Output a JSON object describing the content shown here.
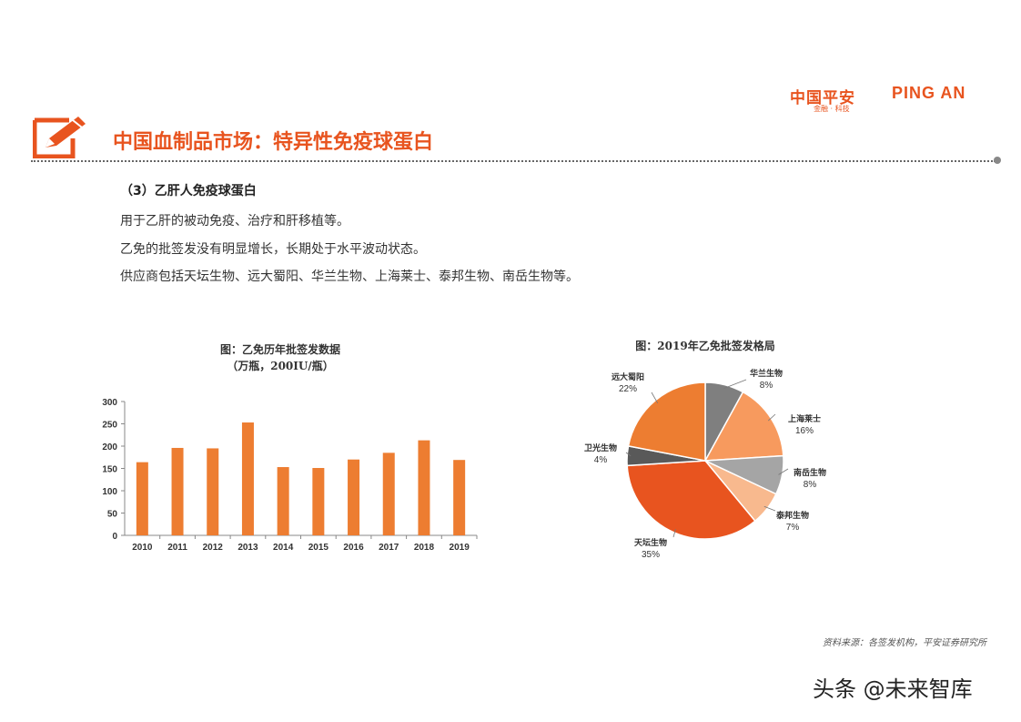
{
  "header": {
    "logo_cn": "中国平安",
    "logo_en": "PING AN",
    "logo_sub": "金融 · 科技",
    "brand_color": "#e8541f"
  },
  "title": {
    "icon": "edit-pencil-icon",
    "text": "中国血制品市场：特异性免疫球蛋白"
  },
  "content": {
    "subheading": "（3）乙肝人免疫球蛋白",
    "paragraphs": [
      "用于乙肝的被动免疫、治疗和肝移植等。",
      "乙免的批签发没有明显增长，长期处于水平波动状态。",
      "供应商包括天坛生物、远大蜀阳、华兰生物、上海莱士、泰邦生物、南岳生物等。"
    ]
  },
  "chart_data": [
    {
      "type": "bar",
      "title": "图：乙免历年批签发数据",
      "subtitle": "（万瓶，200IU/瓶）",
      "categories": [
        "2010",
        "2011",
        "2012",
        "2013",
        "2014",
        "2015",
        "2016",
        "2017",
        "2018",
        "2019"
      ],
      "values": [
        164,
        196,
        195,
        253,
        153,
        151,
        170,
        185,
        213,
        169
      ],
      "ylim": [
        0,
        300
      ],
      "yticks": [
        0,
        50,
        100,
        150,
        200,
        250,
        300
      ],
      "grid": false,
      "color": "#ed7d31"
    },
    {
      "type": "pie",
      "title": "图：2019年乙免批签发格局",
      "slices": [
        {
          "label": "华兰生物",
          "pct": "8%",
          "value": 8,
          "color": "#7f7f7f"
        },
        {
          "label": "上海莱士",
          "pct": "16%",
          "value": 16,
          "color": "#f79a5e"
        },
        {
          "label": "南岳生物",
          "pct": "8%",
          "value": 8,
          "color": "#a5a5a5"
        },
        {
          "label": "泰邦生物",
          "pct": "7%",
          "value": 7,
          "color": "#f8b98e"
        },
        {
          "label": "天坛生物",
          "pct": "35%",
          "value": 35,
          "color": "#e8541f"
        },
        {
          "label": "卫光生物",
          "pct": "4%",
          "value": 4,
          "color": "#595959"
        },
        {
          "label": "远大蜀阳",
          "pct": "22%",
          "value": 22,
          "color": "#ed7d31"
        }
      ]
    }
  ],
  "footer": {
    "source": "资料来源：各签发机构，平安证券研究所",
    "watermark": "头条 @未来智库"
  }
}
